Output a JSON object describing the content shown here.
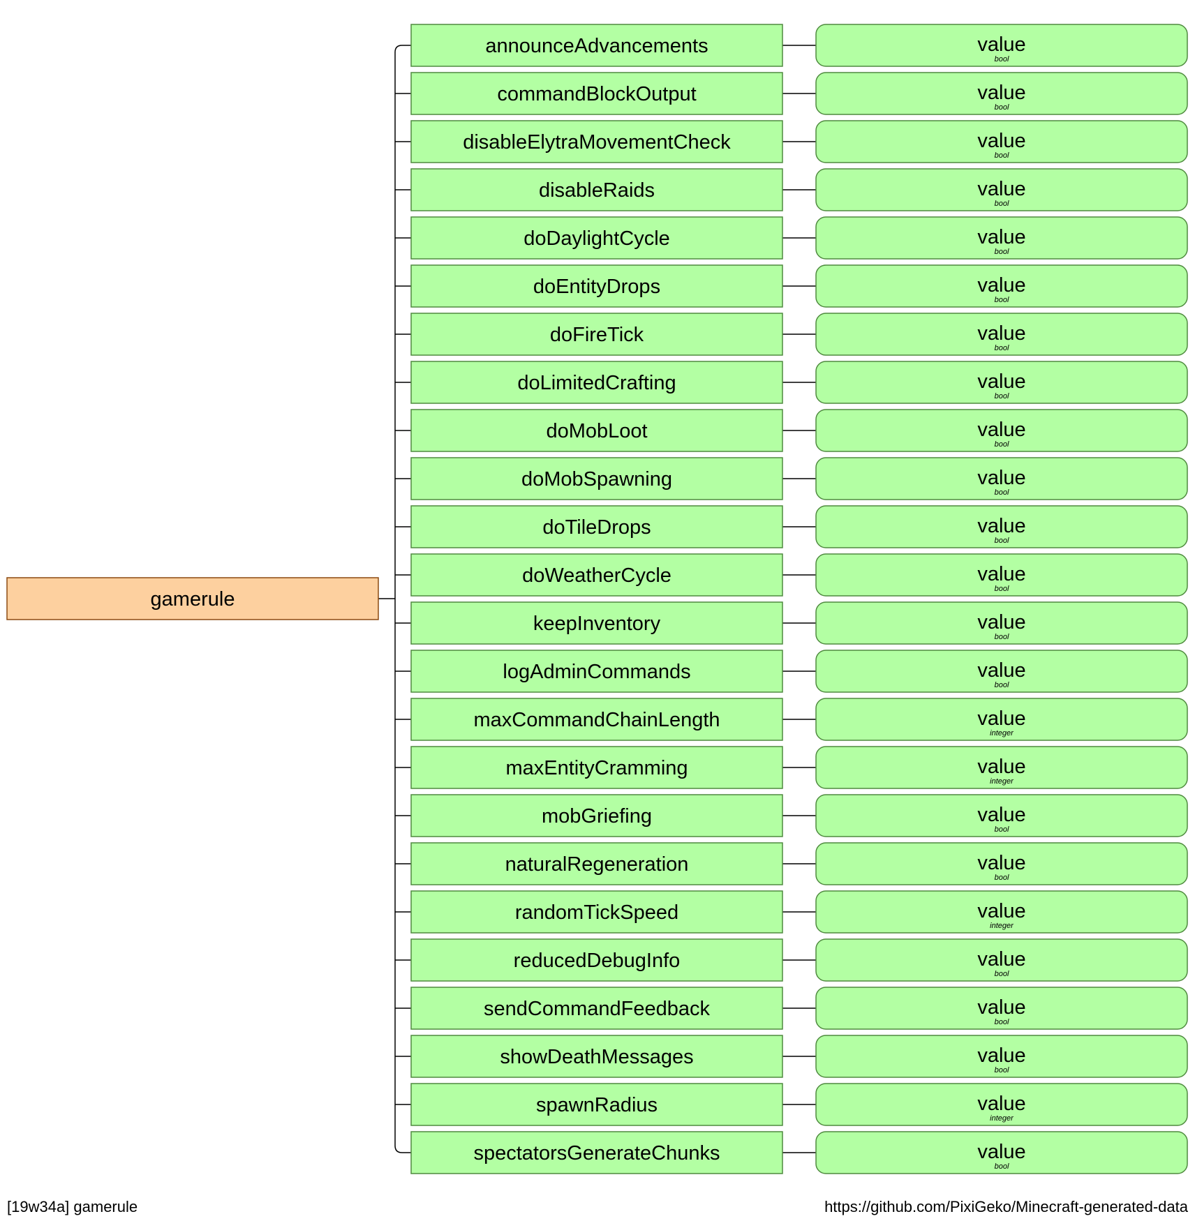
{
  "root": {
    "label": "gamerule"
  },
  "value_label": "value",
  "rules": [
    {
      "name": "announceAdvancements",
      "type": "bool"
    },
    {
      "name": "commandBlockOutput",
      "type": "bool"
    },
    {
      "name": "disableElytraMovementCheck",
      "type": "bool"
    },
    {
      "name": "disableRaids",
      "type": "bool"
    },
    {
      "name": "doDaylightCycle",
      "type": "bool"
    },
    {
      "name": "doEntityDrops",
      "type": "bool"
    },
    {
      "name": "doFireTick",
      "type": "bool"
    },
    {
      "name": "doLimitedCrafting",
      "type": "bool"
    },
    {
      "name": "doMobLoot",
      "type": "bool"
    },
    {
      "name": "doMobSpawning",
      "type": "bool"
    },
    {
      "name": "doTileDrops",
      "type": "bool"
    },
    {
      "name": "doWeatherCycle",
      "type": "bool"
    },
    {
      "name": "keepInventory",
      "type": "bool"
    },
    {
      "name": "logAdminCommands",
      "type": "bool"
    },
    {
      "name": "maxCommandChainLength",
      "type": "integer"
    },
    {
      "name": "maxEntityCramming",
      "type": "integer"
    },
    {
      "name": "mobGriefing",
      "type": "bool"
    },
    {
      "name": "naturalRegeneration",
      "type": "bool"
    },
    {
      "name": "randomTickSpeed",
      "type": "integer"
    },
    {
      "name": "reducedDebugInfo",
      "type": "bool"
    },
    {
      "name": "sendCommandFeedback",
      "type": "bool"
    },
    {
      "name": "showDeathMessages",
      "type": "bool"
    },
    {
      "name": "spawnRadius",
      "type": "integer"
    },
    {
      "name": "spectatorsGenerateChunks",
      "type": "bool"
    }
  ],
  "footer": {
    "left": "[19w34a] gamerule",
    "right": "https://github.com/PixiGeko/Minecraft-generated-data"
  },
  "colors": {
    "root_fill": "#fdd09f",
    "root_stroke": "#8b4a12",
    "node_fill": "#b3ffa3",
    "node_stroke": "#4f8a3f",
    "line": "#000000"
  }
}
